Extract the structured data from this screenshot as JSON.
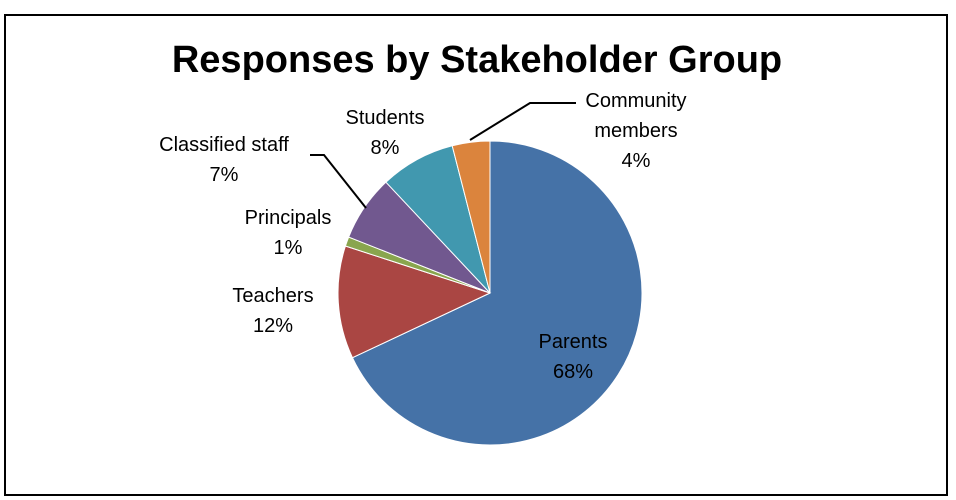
{
  "chart_data": {
    "type": "pie",
    "title": "Responses by Stakeholder Group",
    "slices": [
      {
        "name": "Parents",
        "value": 68,
        "percent_label": "68%",
        "color": "#4572A7"
      },
      {
        "name": "Teachers",
        "value": 12,
        "percent_label": "12%",
        "color": "#AA4643"
      },
      {
        "name": "Principals",
        "value": 1,
        "percent_label": "1%",
        "color": "#89A54E"
      },
      {
        "name": "Classified staff",
        "value": 7,
        "percent_label": "7%",
        "color": "#71588F"
      },
      {
        "name": "Students",
        "value": 8,
        "percent_label": "8%",
        "color": "#4198AF"
      },
      {
        "name": "Community members",
        "value": 4,
        "percent_label": "4%",
        "color": "#DB843D"
      }
    ],
    "legend": "none",
    "data_labels": "outside with leader lines"
  }
}
